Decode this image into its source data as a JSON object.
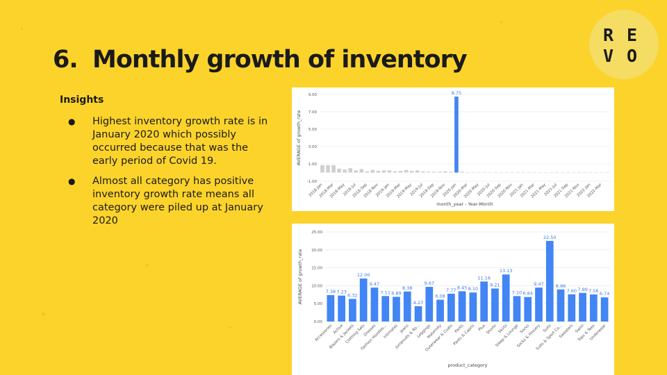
{
  "slide": {
    "number": "6.",
    "title": "Monthly growth of inventory",
    "insights_heading": "Insights",
    "bullets": [
      "Highest inventory growth rate is in January 2020 which possibly occurred because that was the early period of Covid 19.",
      "Almost all category has positive inventory growth rate means all category were piled up at January 2020"
    ],
    "bullet_glyph": "●"
  },
  "logo": {
    "letters": [
      "R",
      "E",
      "V",
      "O"
    ]
  },
  "colors": {
    "background": "#fcd32b",
    "bar": "#4285f4",
    "faded_bar": "#cfcfcf",
    "label": "#3e7ae8"
  },
  "chart_data": [
    {
      "type": "bar",
      "xlabel": "month_year - Year-Month",
      "ylabel": "AVERAGE of growth_rate",
      "ylim": [
        -1,
        9
      ],
      "yticks": [
        "9.00",
        "7.00",
        "5.00",
        "3.00",
        "1.00",
        "-1.00"
      ],
      "categories": [
        "2018-Jan",
        "2018-Feb",
        "2018-Mar",
        "2018-Apr",
        "2018-May",
        "2018-Jun",
        "2018-Jul",
        "2018-Aug",
        "2018-Sep",
        "2018-Oct",
        "2018-Nov",
        "2018-Dec",
        "2019-Jan",
        "2019-Feb",
        "2019-Mar",
        "2019-Apr",
        "2019-May",
        "2019-Jun",
        "2019-Jul",
        "2019-Aug",
        "2019-Sep",
        "2019-Oct",
        "2019-Nov",
        "2019-Dec",
        "2020-Jan",
        "2020-Feb",
        "2020-Mar",
        "2020-Apr",
        "2020-May",
        "2020-Jun",
        "2020-Jul",
        "2020-Aug",
        "2020-Sep",
        "2020-Oct",
        "2020-Nov",
        "2020-Dec",
        "2021-Jan",
        "2021-Feb",
        "2021-Mar",
        "2021-Apr",
        "2021-May",
        "2021-Jun",
        "2021-Jul",
        "2021-Aug",
        "2021-Sep",
        "2021-Oct",
        "2021-Nov",
        "2021-Dec",
        "2022-Jan",
        "2022-Feb",
        "2022-Mar",
        "2022-Apr"
      ],
      "xtick_labels": [
        "2018-Jan",
        "2018-Mar",
        "2018-May",
        "2018-Jul",
        "2018-Sep",
        "2018-Nov",
        "2019-Jan",
        "2019-Mar",
        "2019-May",
        "2019-Jul",
        "2019-Sep",
        "2019-Nov",
        "2020-Jan",
        "2020-Mar",
        "2020-May",
        "2020-Jul",
        "2020-Sep",
        "2020-Nov",
        "2021-Jan",
        "2021-Mar",
        "2021-May",
        "2021-Jul",
        "2021-Sep",
        "2021-Nov",
        "2022-Jan",
        "2022-Mar"
      ],
      "values": [
        0.85,
        0.85,
        0.85,
        0.45,
        0.35,
        0.5,
        0.25,
        0.4,
        0.15,
        0.3,
        0.2,
        0.25,
        0.25,
        0.15,
        0.2,
        0.3,
        0.2,
        0.25,
        0.15,
        0.1,
        0.1,
        0.1,
        0.15,
        0.1,
        8.75,
        0.1,
        0.0,
        0.05,
        0.05,
        0.05,
        0.0,
        0.05,
        -0.05,
        0.05,
        0.0,
        0.05,
        0.05,
        0.0,
        0.05,
        0.0,
        -0.05,
        0.0,
        0.05,
        0.0,
        0.05,
        0.0,
        0.0,
        0.0,
        0.05,
        0.0,
        0.05,
        0.0
      ],
      "highlight_index": 24,
      "highlight_label": "8.75"
    },
    {
      "type": "bar",
      "xlabel": "product_category",
      "ylabel": "AVERAGE of growth_rate",
      "ylim": [
        0,
        25
      ],
      "yticks": [
        "25.00",
        "20.00",
        "15.00",
        "10.00",
        "5.00",
        "0.00"
      ],
      "categories": [
        "Accessories",
        "Active",
        "Blazers & Jackets",
        "Clothing Sets",
        "Dresses",
        "Fashion Hoodies...",
        "Intimates",
        "Jeans",
        "Jumpsuits & Ro...",
        "Leggings",
        "Maternity",
        "Outerwear & Coats",
        "Pants",
        "Pants & Capris",
        "Plus",
        "Shorts",
        "Skirts",
        "Sleep & Lounge",
        "Socks",
        "Socks & Hosiery",
        "Suits",
        "Suits & Sport Co...",
        "Sweaters",
        "Swim",
        "Tops & Tees",
        "Underwear"
      ],
      "values": [
        7.38,
        7.23,
        6.32,
        12.0,
        9.47,
        7.11,
        6.89,
        8.38,
        4.27,
        9.67,
        6.08,
        7.77,
        8.45,
        8.1,
        11.16,
        9.21,
        13.13,
        7.1,
        6.84,
        9.47,
        22.5,
        8.96,
        7.6,
        7.99,
        7.56,
        6.74
      ],
      "labels": [
        "7.38",
        "7.23",
        "6.32",
        "12.00",
        "9.47",
        "7.11",
        "6.89",
        "8.38",
        "4.27",
        "9.67",
        "6.08",
        "7.77",
        "8.45",
        "8.10",
        "11.16",
        "9.21",
        "13.13",
        "7.10",
        "6.84",
        "9.47",
        "22.50",
        "8.96",
        "7.60",
        "7.99",
        "7.56",
        "6.74"
      ]
    }
  ]
}
